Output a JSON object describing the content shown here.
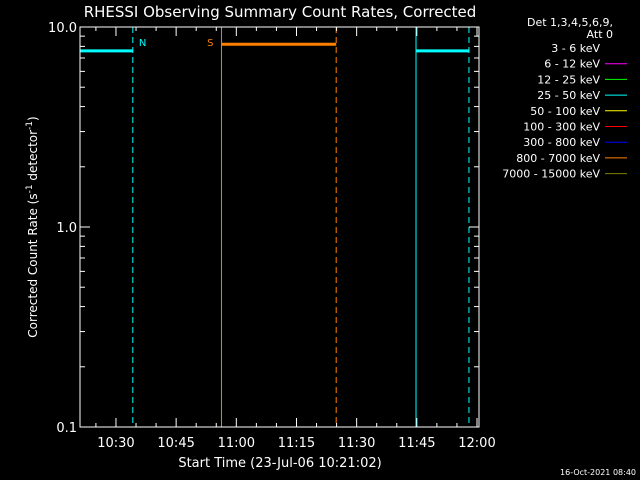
{
  "chart_data": {
    "type": "line",
    "title": "RHESSI Observing Summary Count Rates, Corrected",
    "xlabel": "Start Time (23-Jul-06 10:21:02)",
    "ylabel_main": "Corrected Count Rate (s",
    "ylabel_sup1": "-1",
    "ylabel_mid": " detector",
    "ylabel_sup2": "-1",
    "ylabel_end": ")",
    "yscale": "log",
    "ylim": [
      0.1,
      10.0
    ],
    "yticks": [
      {
        "value": 0.1,
        "label": "0.1"
      },
      {
        "value": 1.0,
        "label": "1.0"
      },
      {
        "value": 10.0,
        "label": "10.0"
      }
    ],
    "xlim_min": [
      21.0333,
      120.5
    ],
    "xticks": [
      {
        "value": 30,
        "label": "10:30"
      },
      {
        "value": 45,
        "label": "10:45"
      },
      {
        "value": 60,
        "label": "11:00"
      },
      {
        "value": 75,
        "label": "11:15"
      },
      {
        "value": 90,
        "label": "11:30"
      },
      {
        "value": 105,
        "label": "11:45"
      },
      {
        "value": 120,
        "label": "12:00"
      }
    ],
    "legend_header": [
      "Det 1,3,4,5,6,9,",
      "Att 0"
    ],
    "legend_placement": "right",
    "series": [
      {
        "name": "3 - 6 keV",
        "color": "#000000"
      },
      {
        "name": "6 - 12 keV",
        "color": "#ff00ff"
      },
      {
        "name": "12 - 25 keV",
        "color": "#00ff00"
      },
      {
        "name": "25 - 50 keV",
        "color": "#00ffff",
        "segments": [
          {
            "x_start": 21.0333,
            "x_end": 34.2,
            "y": 7.6
          },
          {
            "x_start": 104.8,
            "x_end": 118.0,
            "y": 7.6
          }
        ]
      },
      {
        "name": "50 - 100 keV",
        "color": "#ffff00"
      },
      {
        "name": "100 - 300 keV",
        "color": "#ff0000"
      },
      {
        "name": "300 - 800 keV",
        "color": "#0000ff"
      },
      {
        "name": "800 - 7000 keV",
        "color": "#ff8000",
        "segments": [
          {
            "x_start": 56.3,
            "x_end": 84.9,
            "y": 8.2
          }
        ]
      },
      {
        "name": "7000 - 15000 keV",
        "color": "#808000"
      }
    ],
    "markers": [
      {
        "type": "solid",
        "x": 21.0333,
        "color": "#00ffff",
        "label": ""
      },
      {
        "type": "dashed",
        "x": 34.2,
        "color": "#00ffff",
        "label": "N"
      },
      {
        "type": "solid",
        "x": 56.3,
        "color": "#ff8000",
        "label": "S"
      },
      {
        "type": "dashed",
        "x": 84.9,
        "color": "#ff8000",
        "label": ""
      },
      {
        "type": "solid",
        "x": 104.8,
        "color": "#00ffff",
        "label": ""
      },
      {
        "type": "dashed",
        "x": 118.0,
        "color": "#00ffff",
        "label": ""
      }
    ],
    "timestamp": "16-Oct-2021 08:40"
  }
}
